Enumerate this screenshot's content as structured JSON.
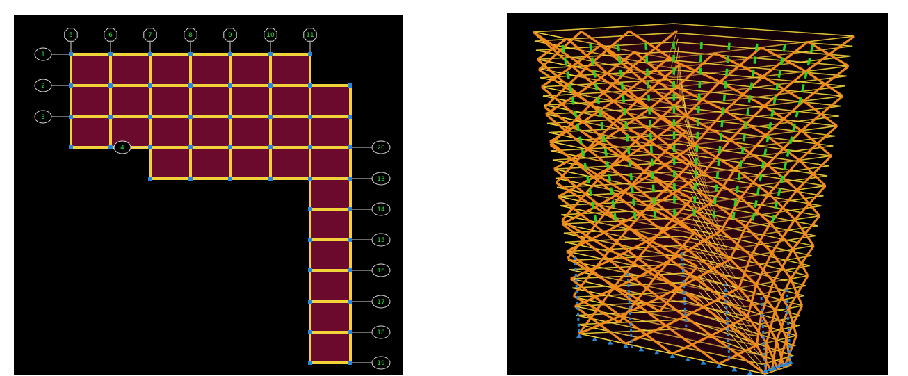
{
  "plan_view": {
    "grid_labels_top": [
      "5",
      "6",
      "7",
      "8",
      "9",
      "10",
      "11"
    ],
    "grid_labels_left": [
      "1",
      "2",
      "3",
      "4"
    ],
    "grid_labels_right": [
      "20",
      "13",
      "14",
      "15",
      "16",
      "17",
      "18",
      "19"
    ]
  },
  "colors": {
    "background": "#000000",
    "slab": "#6b0a2d",
    "beam": "#f2d23a",
    "column": "#2a86d6",
    "bubble_line": "#d8d8d8",
    "label_text": "#2ee03a",
    "brace": "#f08a1c",
    "core": "#22d62a"
  },
  "iso_view": {
    "base_support_icon": "pin-support-icon"
  }
}
